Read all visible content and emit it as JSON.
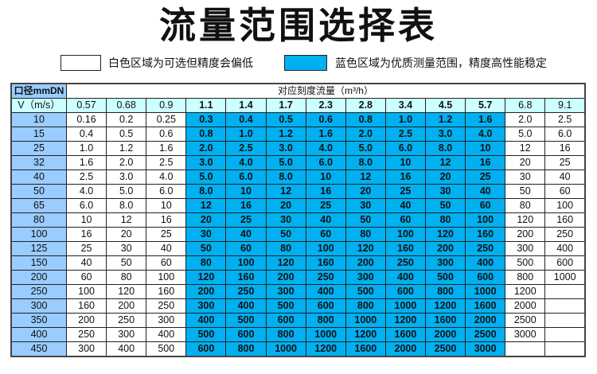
{
  "title": "流量范围选择表",
  "legend": [
    {
      "color": "#ffffff",
      "text": "白色区域为可选但精度会偏低"
    },
    {
      "color": "#00b0f0",
      "text": "蓝色区域为优质测量范围，精度高性能稳定"
    }
  ],
  "colors": {
    "blue_region": "#00b0f0",
    "dn_column": "#99ccff",
    "header_row": "#ccffff"
  },
  "table": {
    "corner_label": "口径mmDN",
    "caption": "对应刻度流量（m³/h）",
    "velocity_label": "V（m/s）",
    "velocities": [
      "0.57",
      "0.68",
      "0.9",
      "1.1",
      "1.4",
      "1.7",
      "2.3",
      "2.8",
      "3.4",
      "4.5",
      "5.7",
      "6.8",
      "9.1"
    ],
    "blue_columns": [
      "1.1",
      "1.4",
      "1.7",
      "2.3",
      "2.8",
      "3.4",
      "4.5",
      "5.7"
    ],
    "rows": [
      {
        "dn": "10",
        "values": [
          "0.16",
          "0.2",
          "0.25",
          "0.3",
          "0.4",
          "0.5",
          "0.6",
          "0.8",
          "1.0",
          "1.2",
          "1.6",
          "2.0",
          "2.5"
        ]
      },
      {
        "dn": "15",
        "values": [
          "0.4",
          "0.5",
          "0.6",
          "0.8",
          "1.0",
          "1.2",
          "1.6",
          "2.0",
          "2.5",
          "3.0",
          "4.0",
          "5.0",
          "6.0"
        ]
      },
      {
        "dn": "25",
        "values": [
          "1.0",
          "1.2",
          "1.6",
          "2.0",
          "2.5",
          "3.0",
          "4.0",
          "5.0",
          "6.0",
          "8.0",
          "10",
          "12",
          "16"
        ]
      },
      {
        "dn": "32",
        "values": [
          "1.6",
          "2.0",
          "2.5",
          "3.0",
          "4.0",
          "5.0",
          "6.0",
          "8.0",
          "10",
          "12",
          "16",
          "20",
          "25"
        ]
      },
      {
        "dn": "40",
        "values": [
          "2.5",
          "3.0",
          "4.0",
          "5.0",
          "6.0",
          "8.0",
          "10",
          "12",
          "16",
          "20",
          "25",
          "30",
          "40"
        ]
      },
      {
        "dn": "50",
        "values": [
          "4.0",
          "5.0",
          "6.0",
          "8.0",
          "10",
          "12",
          "16",
          "20",
          "25",
          "30",
          "40",
          "50",
          "60"
        ]
      },
      {
        "dn": "65",
        "values": [
          "6.0",
          "8.0",
          "10",
          "12",
          "16",
          "20",
          "25",
          "30",
          "40",
          "50",
          "60",
          "80",
          "100"
        ]
      },
      {
        "dn": "80",
        "values": [
          "10",
          "12",
          "16",
          "20",
          "25",
          "30",
          "40",
          "50",
          "60",
          "80",
          "100",
          "120",
          "160"
        ]
      },
      {
        "dn": "100",
        "values": [
          "16",
          "20",
          "25",
          "30",
          "40",
          "50",
          "60",
          "80",
          "100",
          "120",
          "160",
          "200",
          "250"
        ]
      },
      {
        "dn": "125",
        "values": [
          "25",
          "30",
          "40",
          "50",
          "60",
          "80",
          "100",
          "120",
          "160",
          "200",
          "250",
          "300",
          "400"
        ]
      },
      {
        "dn": "150",
        "values": [
          "40",
          "50",
          "60",
          "80",
          "100",
          "120",
          "160",
          "200",
          "250",
          "300",
          "400",
          "500",
          "600"
        ]
      },
      {
        "dn": "200",
        "values": [
          "60",
          "80",
          "100",
          "120",
          "160",
          "200",
          "250",
          "300",
          "400",
          "500",
          "600",
          "800",
          "1000"
        ]
      },
      {
        "dn": "250",
        "values": [
          "100",
          "120",
          "160",
          "200",
          "250",
          "300",
          "400",
          "500",
          "600",
          "800",
          "1000",
          "1200",
          ""
        ]
      },
      {
        "dn": "300",
        "values": [
          "160",
          "200",
          "250",
          "300",
          "400",
          "500",
          "600",
          "800",
          "1000",
          "1200",
          "1600",
          "2000",
          ""
        ]
      },
      {
        "dn": "350",
        "values": [
          "200",
          "250",
          "300",
          "400",
          "500",
          "600",
          "800",
          "1000",
          "1200",
          "1600",
          "2000",
          "2500",
          ""
        ]
      },
      {
        "dn": "400",
        "values": [
          "250",
          "300",
          "400",
          "500",
          "600",
          "800",
          "1000",
          "1200",
          "1600",
          "2000",
          "2500",
          "3000",
          ""
        ]
      },
      {
        "dn": "450",
        "values": [
          "300",
          "400",
          "500",
          "600",
          "800",
          "1000",
          "1200",
          "1600",
          "2000",
          "2500",
          "3000",
          "",
          ""
        ]
      }
    ]
  }
}
